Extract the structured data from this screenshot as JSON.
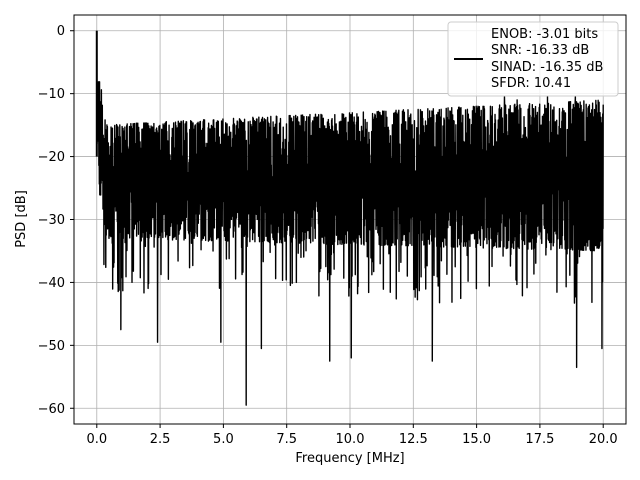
{
  "chart_data": {
    "type": "line",
    "title": "",
    "xlabel": "Frequency [MHz]",
    "ylabel": "PSD [dB]",
    "xlim": [
      -0.9,
      20.9
    ],
    "ylim": [
      -62.5,
      2.5
    ],
    "xticks": [
      0.0,
      2.5,
      5.0,
      7.5,
      10.0,
      12.5,
      15.0,
      17.5,
      20.0
    ],
    "xtick_labels": [
      "0.0",
      "2.5",
      "5.0",
      "7.5",
      "10.0",
      "12.5",
      "15.0",
      "17.5",
      "20.0"
    ],
    "yticks": [
      0,
      -10,
      -20,
      -30,
      -40,
      -50,
      -60
    ],
    "ytick_labels": [
      "0",
      "−10",
      "−20",
      "−30",
      "−40",
      "−50",
      "−60"
    ],
    "grid": true,
    "legend_position": "top-right",
    "series": [
      {
        "legend_lines": [
          "ENOB: -3.01 bits",
          "SNR: -16.33 dB",
          "SINAD: -16.35 dB",
          "SFDR: 10.41"
        ],
        "color": "#000000",
        "description": "dense noise-like PSD spectrum",
        "x_range": [
          0.0,
          20.0
        ],
        "peak": {
          "x": 0.0,
          "y": 0.0
        },
        "band_start": {
          "upper": -15,
          "lower": -33
        },
        "band_end": {
          "upper": -11,
          "lower": -35
        },
        "min": {
          "x": 5.9,
          "y": -59.5
        },
        "notable_dips": [
          {
            "x": 0.95,
            "y": -47.5
          },
          {
            "x": 2.4,
            "y": -49.5
          },
          {
            "x": 4.9,
            "y": -49.5
          },
          {
            "x": 5.9,
            "y": -59.5
          },
          {
            "x": 6.5,
            "y": -50.5
          },
          {
            "x": 9.2,
            "y": -52.5
          },
          {
            "x": 10.05,
            "y": -52
          },
          {
            "x": 13.25,
            "y": -52.5
          },
          {
            "x": 18.95,
            "y": -53.5
          },
          {
            "x": 19.95,
            "y": -50.5
          }
        ],
        "notable_peaks": [
          {
            "x": 16.1,
            "y": -10.5
          },
          {
            "x": 16.6,
            "y": -11
          },
          {
            "x": 17.8,
            "y": -10.5
          },
          {
            "x": 18.9,
            "y": -10.5
          },
          {
            "x": 19.9,
            "y": -14.5
          }
        ]
      }
    ]
  }
}
